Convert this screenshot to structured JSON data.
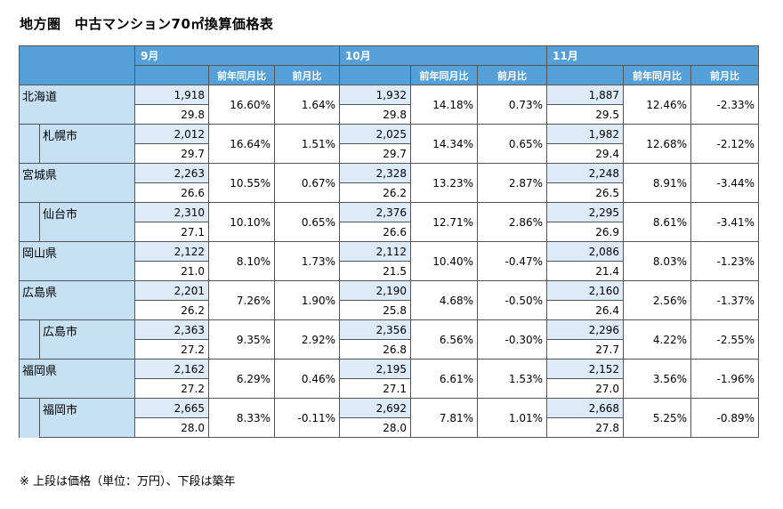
{
  "title": "地方圏　中古マンション70㎡換算価格表",
  "note": "※ 上段は価格（単位：万円）、下段は築年",
  "months": [
    "9月",
    "10月",
    "11月"
  ],
  "col_yoy": "前年同月比",
  "col_mom": "前月比",
  "rows": [
    {
      "name": "北海道",
      "city": false,
      "data": [
        {
          "price": "1,918",
          "age": "29.8",
          "yoy": "16.60%",
          "mom": "1.64%"
        },
        {
          "price": "1,932",
          "age": "29.8",
          "yoy": "14.18%",
          "mom": "0.73%"
        },
        {
          "price": "1,887",
          "age": "29.5",
          "yoy": "12.46%",
          "mom": "-2.33%"
        }
      ]
    },
    {
      "name": "札幌市",
      "city": true,
      "data": [
        {
          "price": "2,012",
          "age": "29.7",
          "yoy": "16.64%",
          "mom": "1.51%"
        },
        {
          "price": "2,025",
          "age": "29.7",
          "yoy": "14.34%",
          "mom": "0.65%"
        },
        {
          "price": "1,982",
          "age": "29.4",
          "yoy": "12.68%",
          "mom": "-2.12%"
        }
      ]
    },
    {
      "name": "宮城県",
      "city": false,
      "data": [
        {
          "price": "2,263",
          "age": "26.6",
          "yoy": "10.55%",
          "mom": "0.67%"
        },
        {
          "price": "2,328",
          "age": "26.2",
          "yoy": "13.23%",
          "mom": "2.87%"
        },
        {
          "price": "2,248",
          "age": "26.5",
          "yoy": "8.91%",
          "mom": "-3.44%"
        }
      ]
    },
    {
      "name": "仙台市",
      "city": true,
      "data": [
        {
          "price": "2,310",
          "age": "27.1",
          "yoy": "10.10%",
          "mom": "0.65%"
        },
        {
          "price": "2,376",
          "age": "26.6",
          "yoy": "12.71%",
          "mom": "2.86%"
        },
        {
          "price": "2,295",
          "age": "26.9",
          "yoy": "8.61%",
          "mom": "-3.41%"
        }
      ]
    },
    {
      "name": "岡山県",
      "city": false,
      "data": [
        {
          "price": "2,122",
          "age": "21.0",
          "yoy": "8.10%",
          "mom": "1.73%"
        },
        {
          "price": "2,112",
          "age": "21.5",
          "yoy": "10.40%",
          "mom": "-0.47%"
        },
        {
          "price": "2,086",
          "age": "21.4",
          "yoy": "8.03%",
          "mom": "-1.23%"
        }
      ]
    },
    {
      "name": "広島県",
      "city": false,
      "data": [
        {
          "price": "2,201",
          "age": "26.2",
          "yoy": "7.26%",
          "mom": "1.90%"
        },
        {
          "price": "2,190",
          "age": "25.8",
          "yoy": "4.68%",
          "mom": "-0.50%"
        },
        {
          "price": "2,160",
          "age": "26.4",
          "yoy": "2.56%",
          "mom": "-1.37%"
        }
      ]
    },
    {
      "name": "広島市",
      "city": true,
      "data": [
        {
          "price": "2,363",
          "age": "27.2",
          "yoy": "9.35%",
          "mom": "2.92%"
        },
        {
          "price": "2,356",
          "age": "26.8",
          "yoy": "6.56%",
          "mom": "-0.30%"
        },
        {
          "price": "2,296",
          "age": "27.7",
          "yoy": "4.22%",
          "mom": "-2.55%"
        }
      ]
    },
    {
      "name": "福岡県",
      "city": false,
      "data": [
        {
          "price": "2,162",
          "age": "27.2",
          "yoy": "6.29%",
          "mom": "0.46%"
        },
        {
          "price": "2,195",
          "age": "27.1",
          "yoy": "6.61%",
          "mom": "1.53%"
        },
        {
          "price": "2,152",
          "age": "27.0",
          "yoy": "3.56%",
          "mom": "-1.96%"
        }
      ]
    },
    {
      "name": "福岡市",
      "city": true,
      "data": [
        {
          "price": "2,665",
          "age": "28.0",
          "yoy": "8.33%",
          "mom": "-0.11%"
        },
        {
          "price": "2,692",
          "age": "28.0",
          "yoy": "7.81%",
          "mom": "1.01%"
        },
        {
          "price": "2,668",
          "age": "27.8",
          "yoy": "5.25%",
          "mom": "-0.89%"
        }
      ]
    }
  ]
}
